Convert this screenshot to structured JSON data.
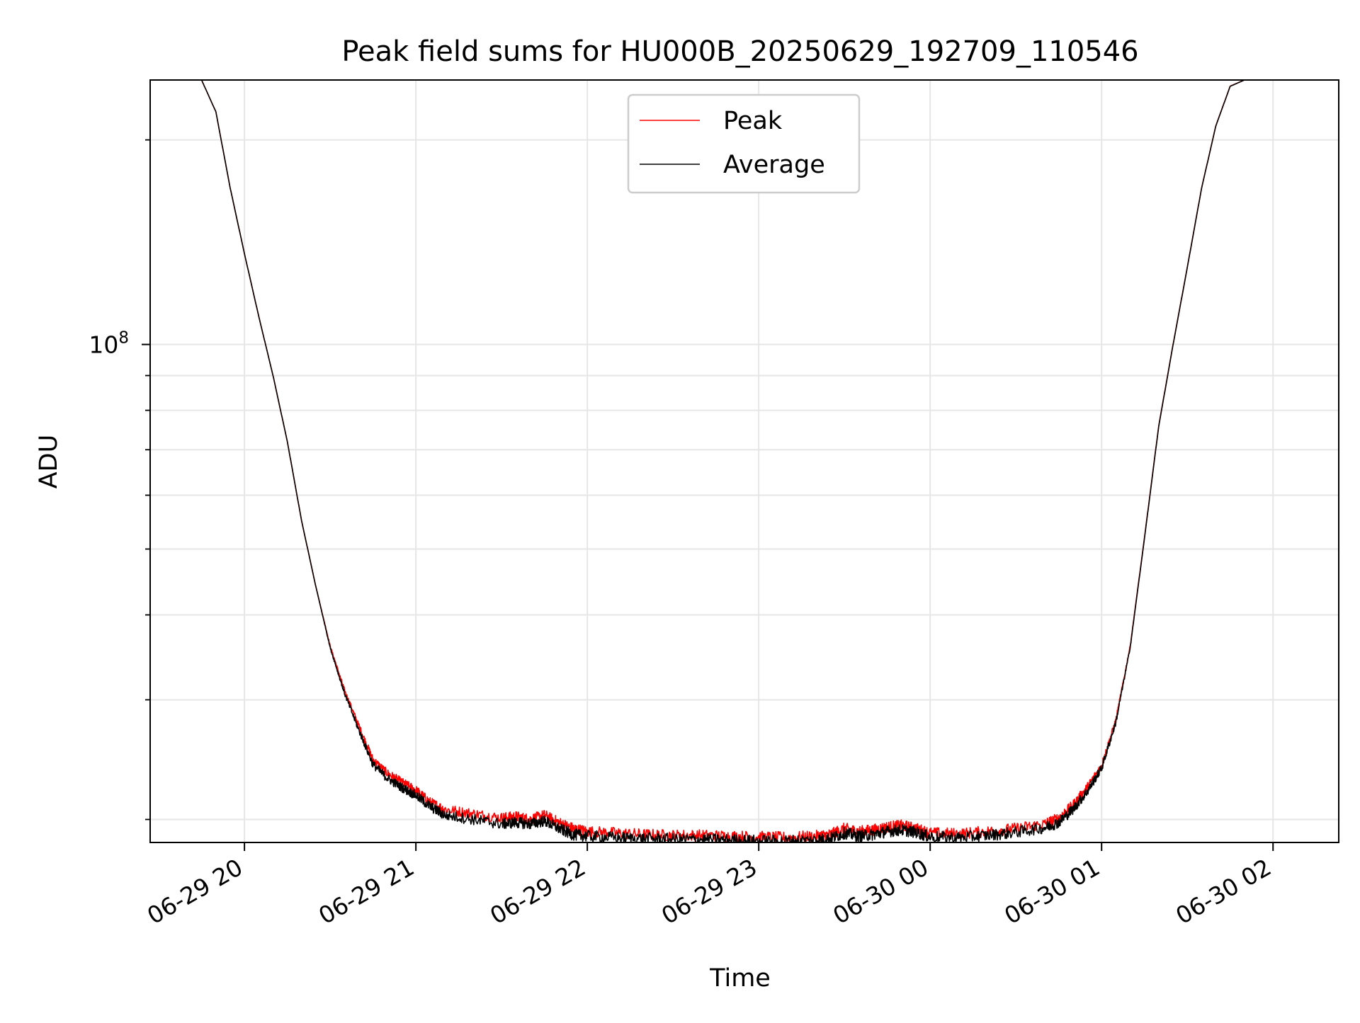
{
  "chart_data": {
    "type": "line",
    "title": "Peak field sums for HU000B_20250629_192709_110546",
    "xlabel": "Time",
    "ylabel": "ADU",
    "y_scale": "log",
    "grid": true,
    "legend_position": "upper-center",
    "x_tick_labels": [
      "06-29 20",
      "06-29 21",
      "06-29 22",
      "06-29 23",
      "06-30 00",
      "06-30 01",
      "06-30 02"
    ],
    "x_ticks": [
      "2025-06-29 20:00",
      "2025-06-29 21:00",
      "2025-06-29 22:00",
      "2025-06-29 23:00",
      "2025-06-30 00:00",
      "2025-06-30 01:00",
      "2025-06-30 02:00"
    ],
    "xlim": [
      "2025-06-29 19:27",
      "2025-06-30 02:23"
    ],
    "y_major_tick_label": {
      "base": "10",
      "exp": "8"
    },
    "y_major_tick_value": 100000000,
    "y_minor_ticks": [
      20000000,
      30000000,
      40000000,
      50000000,
      60000000,
      70000000,
      80000000,
      90000000,
      200000000
    ],
    "ylim": [
      18500000,
      245000000
    ],
    "series": [
      {
        "name": "Peak",
        "color": "#ff0000",
        "points": [
          [
            "2025-06-29 19:27",
            245000000
          ],
          [
            "2025-06-29 19:45",
            245000000
          ],
          [
            "2025-06-29 19:50",
            220000000
          ],
          [
            "2025-06-29 19:55",
            170000000
          ],
          [
            "2025-06-29 20:00",
            136000000
          ],
          [
            "2025-06-29 20:05",
            110000000
          ],
          [
            "2025-06-29 20:10",
            90000000
          ],
          [
            "2025-06-29 20:15",
            72000000
          ],
          [
            "2025-06-29 20:20",
            55000000
          ],
          [
            "2025-06-29 20:25",
            44000000
          ],
          [
            "2025-06-29 20:30",
            36000000
          ],
          [
            "2025-06-29 20:35",
            31000000
          ],
          [
            "2025-06-29 20:40",
            27500000
          ],
          [
            "2025-06-29 20:45",
            24500000
          ],
          [
            "2025-06-29 20:50",
            23400000
          ],
          [
            "2025-06-29 20:55",
            22700000
          ],
          [
            "2025-06-29 21:00",
            22100000
          ],
          [
            "2025-06-29 21:05",
            21200000
          ],
          [
            "2025-06-29 21:10",
            20700000
          ],
          [
            "2025-06-29 21:20",
            20400000
          ],
          [
            "2025-06-29 21:30",
            20100000
          ],
          [
            "2025-06-29 21:35",
            20200000
          ],
          [
            "2025-06-29 21:40",
            20000000
          ],
          [
            "2025-06-29 21:45",
            20300000
          ],
          [
            "2025-06-29 21:50",
            19800000
          ],
          [
            "2025-06-29 21:55",
            19400000
          ],
          [
            "2025-06-29 22:00",
            19200000
          ],
          [
            "2025-06-29 22:10",
            19100000
          ],
          [
            "2025-06-29 22:20",
            19000000
          ],
          [
            "2025-06-29 22:30",
            18950000
          ],
          [
            "2025-06-29 22:40",
            18950000
          ],
          [
            "2025-06-29 22:50",
            18900000
          ],
          [
            "2025-06-29 23:00",
            18850000
          ],
          [
            "2025-06-29 23:10",
            18800000
          ],
          [
            "2025-06-29 23:20",
            18900000
          ],
          [
            "2025-06-29 23:25",
            19000000
          ],
          [
            "2025-06-29 23:30",
            19400000
          ],
          [
            "2025-06-29 23:35",
            19200000
          ],
          [
            "2025-06-29 23:40",
            19300000
          ],
          [
            "2025-06-29 23:45",
            19500000
          ],
          [
            "2025-06-29 23:50",
            19600000
          ],
          [
            "2025-06-29 23:55",
            19400000
          ],
          [
            "2025-06-30 00:00",
            19100000
          ],
          [
            "2025-06-30 00:10",
            19050000
          ],
          [
            "2025-06-30 00:20",
            19200000
          ],
          [
            "2025-06-30 00:30",
            19400000
          ],
          [
            "2025-06-30 00:40",
            19700000
          ],
          [
            "2025-06-30 00:45",
            20100000
          ],
          [
            "2025-06-30 00:50",
            21000000
          ],
          [
            "2025-06-30 00:55",
            22300000
          ],
          [
            "2025-06-30 01:00",
            24000000
          ],
          [
            "2025-06-30 01:05",
            28000000
          ],
          [
            "2025-06-30 01:10",
            36000000
          ],
          [
            "2025-06-30 01:15",
            52000000
          ],
          [
            "2025-06-30 01:20",
            76000000
          ],
          [
            "2025-06-30 01:25",
            100000000
          ],
          [
            "2025-06-30 01:30",
            130000000
          ],
          [
            "2025-06-30 01:35",
            170000000
          ],
          [
            "2025-06-30 01:40",
            210000000
          ],
          [
            "2025-06-30 01:45",
            240000000
          ],
          [
            "2025-06-30 01:50",
            245000000
          ],
          [
            "2025-06-30 02:23",
            245000000
          ]
        ]
      },
      {
        "name": "Average",
        "color": "#000000",
        "points": [
          [
            "2025-06-29 19:27",
            245000000
          ],
          [
            "2025-06-29 19:45",
            245000000
          ],
          [
            "2025-06-29 19:50",
            220000000
          ],
          [
            "2025-06-29 19:55",
            170000000
          ],
          [
            "2025-06-29 20:00",
            136000000
          ],
          [
            "2025-06-29 20:05",
            110000000
          ],
          [
            "2025-06-29 20:10",
            90000000
          ],
          [
            "2025-06-29 20:15",
            72000000
          ],
          [
            "2025-06-29 20:20",
            55000000
          ],
          [
            "2025-06-29 20:25",
            44000000
          ],
          [
            "2025-06-29 20:30",
            35800000
          ],
          [
            "2025-06-29 20:35",
            30700000
          ],
          [
            "2025-06-29 20:40",
            27100000
          ],
          [
            "2025-06-29 20:45",
            24100000
          ],
          [
            "2025-06-29 20:50",
            23000000
          ],
          [
            "2025-06-29 20:55",
            22300000
          ],
          [
            "2025-06-29 21:00",
            21700000
          ],
          [
            "2025-06-29 21:05",
            20900000
          ],
          [
            "2025-06-29 21:10",
            20300000
          ],
          [
            "2025-06-29 21:20",
            20000000
          ],
          [
            "2025-06-29 21:30",
            19700000
          ],
          [
            "2025-06-29 21:35",
            19800000
          ],
          [
            "2025-06-29 21:40",
            19700000
          ],
          [
            "2025-06-29 21:45",
            19900000
          ],
          [
            "2025-06-29 21:50",
            19400000
          ],
          [
            "2025-06-29 21:55",
            19000000
          ],
          [
            "2025-06-29 22:00",
            18900000
          ],
          [
            "2025-06-29 22:10",
            18800000
          ],
          [
            "2025-06-29 22:20",
            18750000
          ],
          [
            "2025-06-29 22:30",
            18700000
          ],
          [
            "2025-06-29 22:40",
            18700000
          ],
          [
            "2025-06-29 22:50",
            18650000
          ],
          [
            "2025-06-29 23:00",
            18600000
          ],
          [
            "2025-06-29 23:10",
            18600000
          ],
          [
            "2025-06-29 23:20",
            18650000
          ],
          [
            "2025-06-29 23:25",
            18750000
          ],
          [
            "2025-06-29 23:30",
            19100000
          ],
          [
            "2025-06-29 23:35",
            18900000
          ],
          [
            "2025-06-29 23:40",
            19000000
          ],
          [
            "2025-06-29 23:45",
            19200000
          ],
          [
            "2025-06-29 23:50",
            19300000
          ],
          [
            "2025-06-29 23:55",
            19150000
          ],
          [
            "2025-06-30 00:00",
            18850000
          ],
          [
            "2025-06-30 00:10",
            18800000
          ],
          [
            "2025-06-30 00:20",
            18950000
          ],
          [
            "2025-06-30 00:30",
            19150000
          ],
          [
            "2025-06-30 00:40",
            19450000
          ],
          [
            "2025-06-30 00:45",
            19800000
          ],
          [
            "2025-06-30 00:50",
            20700000
          ],
          [
            "2025-06-30 00:55",
            22000000
          ],
          [
            "2025-06-30 01:00",
            23800000
          ],
          [
            "2025-06-30 01:05",
            27800000
          ],
          [
            "2025-06-30 01:10",
            35800000
          ],
          [
            "2025-06-30 01:15",
            51800000
          ],
          [
            "2025-06-30 01:20",
            75800000
          ],
          [
            "2025-06-30 01:25",
            99800000
          ],
          [
            "2025-06-30 01:30",
            129800000
          ],
          [
            "2025-06-30 01:35",
            169800000
          ],
          [
            "2025-06-30 01:40",
            209800000
          ],
          [
            "2025-06-30 01:45",
            239800000
          ],
          [
            "2025-06-30 01:50",
            245000000
          ],
          [
            "2025-06-30 02:23",
            245000000
          ]
        ]
      }
    ]
  }
}
